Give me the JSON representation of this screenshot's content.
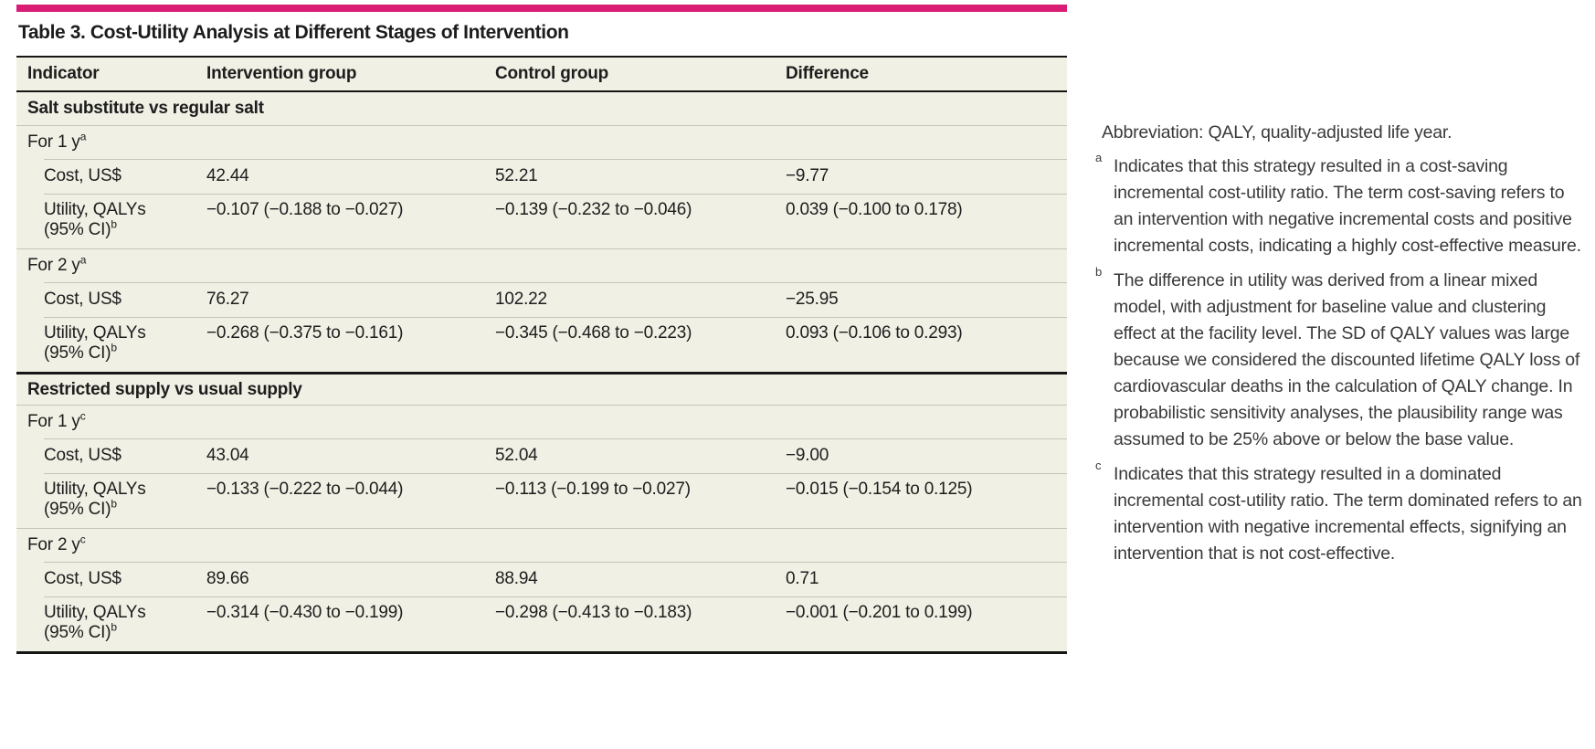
{
  "accent_color": "#d91d75",
  "title": "Table 3. Cost-Utility Analysis at Different Stages of Intervention",
  "table": {
    "columns": [
      "Indicator",
      "Intervention group",
      "Control group",
      "Difference"
    ],
    "sections": [
      {
        "header": "Salt substitute vs regular salt",
        "groups": [
          {
            "label": "For 1 y",
            "sup": "a",
            "rows": [
              {
                "label": "Cost, US$",
                "v1": "42.44",
                "v2": "52.21",
                "v3": "−9.77"
              },
              {
                "label1": "Utility, QALYs",
                "label2": "(95% CI)",
                "sup": "b",
                "v1": "−0.107 (−0.188 to −0.027)",
                "v2": "−0.139 (−0.232 to −0.046)",
                "v3": "0.039 (−0.100 to 0.178)"
              }
            ]
          },
          {
            "label": "For 2 y",
            "sup": "a",
            "rows": [
              {
                "label": "Cost, US$",
                "v1": "76.27",
                "v2": "102.22",
                "v3": "−25.95"
              },
              {
                "label1": "Utility, QALYs",
                "label2": "(95% CI)",
                "sup": "b",
                "v1": "−0.268 (−0.375 to −0.161)",
                "v2": "−0.345 (−0.468 to −0.223)",
                "v3": "0.093 (−0.106 to 0.293)"
              }
            ]
          }
        ]
      },
      {
        "header": "Restricted supply vs usual supply",
        "groups": [
          {
            "label": "For 1 y",
            "sup": "c",
            "rows": [
              {
                "label": "Cost, US$",
                "v1": "43.04",
                "v2": "52.04",
                "v3": "−9.00"
              },
              {
                "label1": "Utility, QALYs",
                "label2": "(95% CI)",
                "sup": "b",
                "v1": "−0.133 (−0.222 to −0.044)",
                "v2": "−0.113 (−0.199 to −0.027)",
                "v3": "−0.015 (−0.154 to 0.125)"
              }
            ]
          },
          {
            "label": "For 2 y",
            "sup": "c",
            "rows": [
              {
                "label": "Cost, US$",
                "v1": "89.66",
                "v2": "88.94",
                "v3": "0.71"
              },
              {
                "label1": "Utility, QALYs",
                "label2": "(95% CI)",
                "sup": "b",
                "v1": "−0.314 (−0.430 to −0.199)",
                "v2": "−0.298 (−0.413 to −0.183)",
                "v3": "−0.001 (−0.201 to 0.199)"
              }
            ]
          }
        ]
      }
    ]
  },
  "notes": {
    "abbreviation": "Abbreviation: QALY, quality-adjusted life year.",
    "footnotes": [
      {
        "marker": "a",
        "text": "Indicates that this strategy resulted in a cost-saving incremental cost-utility ratio. The term cost-saving refers to an intervention with negative incremental costs and positive incremental costs, indicating a highly cost-effective measure."
      },
      {
        "marker": "b",
        "text": "The difference in utility was derived from a linear mixed model, with adjustment for baseline value and clustering effect at the facility level. The SD of QALY values was large because we considered the discounted lifetime QALY loss of cardiovascular deaths in the calculation of QALY change. In probabilistic sensitivity analyses, the plausibility range was assumed to be 25% above or below the base value."
      },
      {
        "marker": "c",
        "text": "Indicates that this strategy resulted in a dominated incremental cost-utility ratio. The term dominated refers to an intervention with negative incremental effects, signifying an intervention that is not cost-effective."
      }
    ]
  }
}
